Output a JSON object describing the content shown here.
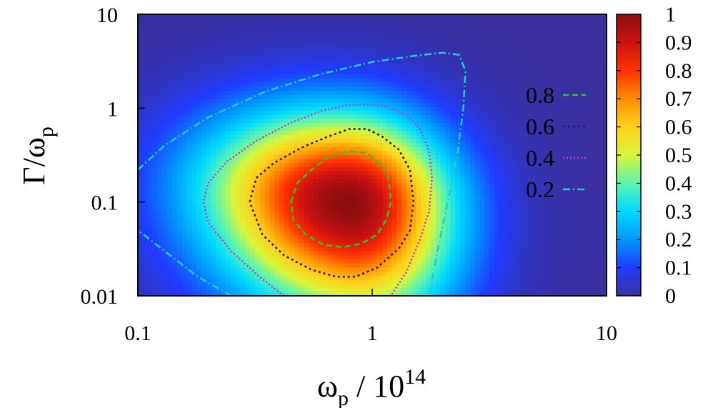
{
  "chart_data": {
    "type": "heatmap",
    "title": "",
    "xlabel": {
      "base": "ω",
      "sub": "p",
      "mid": " / 10",
      "sup": "14"
    },
    "ylabel": {
      "base": "Γ/ω",
      "sub": "p"
    },
    "x_scale": "log",
    "y_scale": "log",
    "xlim": [
      0.1,
      10
    ],
    "ylim": [
      0.01,
      10
    ],
    "x_ticks": [
      "0.1",
      "1",
      "10"
    ],
    "y_ticks": [
      "0.01",
      "0.1",
      "1",
      "10"
    ],
    "zlim": [
      0,
      1
    ],
    "colorbar_ticks": [
      "0",
      "0.1",
      "0.2",
      "0.3",
      "0.4",
      "0.5",
      "0.6",
      "0.7",
      "0.8",
      "0.9",
      "1"
    ],
    "colormap": [
      "#3b2f9e",
      "#1f3cff",
      "#0099ff",
      "#00d9ff",
      "#5cf5b0",
      "#d9f53a",
      "#ffd11a",
      "#ff8c00",
      "#ff3300",
      "#cc1111",
      "#8b0d0d"
    ],
    "peak": {
      "x": 0.8,
      "y": 0.1,
      "z": 1.0
    },
    "contours": [
      {
        "level": "0.8",
        "color": "#22cc22",
        "dash": "8 5",
        "x": [
          0.45,
          0.48,
          0.55,
          0.65,
          0.8,
          0.95,
          1.1,
          1.18,
          1.2,
          1.15,
          1.05,
          0.9,
          0.75,
          0.62,
          0.52,
          0.46,
          0.45
        ],
        "y": [
          0.1,
          0.16,
          0.22,
          0.3,
          0.35,
          0.33,
          0.25,
          0.17,
          0.1,
          0.065,
          0.045,
          0.036,
          0.033,
          0.035,
          0.045,
          0.065,
          0.1
        ]
      },
      {
        "level": "0.6",
        "color": "#1a1a7a",
        "dash": "3 4",
        "x": [
          0.3,
          0.32,
          0.38,
          0.5,
          0.65,
          0.8,
          0.95,
          1.1,
          1.3,
          1.45,
          1.5,
          1.45,
          1.3,
          1.05,
          0.85,
          0.7,
          0.55,
          0.42,
          0.34,
          0.3
        ],
        "y": [
          0.1,
          0.18,
          0.26,
          0.38,
          0.5,
          0.6,
          0.6,
          0.5,
          0.36,
          0.22,
          0.1,
          0.05,
          0.032,
          0.02,
          0.016,
          0.016,
          0.019,
          0.027,
          0.045,
          0.1
        ]
      },
      {
        "level": "0.4",
        "color": "#cc33cc",
        "dash": "2 3",
        "x": [
          0.42,
          0.33,
          0.25,
          0.2,
          0.19,
          0.2,
          0.24,
          0.32,
          0.45,
          0.62,
          0.8,
          0.95,
          1.15,
          1.4,
          1.6,
          1.75,
          1.8,
          1.75,
          1.6,
          1.4,
          1.2
        ],
        "y": [
          0.01,
          0.016,
          0.03,
          0.06,
          0.1,
          0.16,
          0.27,
          0.45,
          0.7,
          0.95,
          1.08,
          1.1,
          1.05,
          0.85,
          0.6,
          0.35,
          0.18,
          0.08,
          0.04,
          0.018,
          0.01
        ]
      },
      {
        "level": "0.2",
        "color": "#22cccc",
        "dash": "10 4 2 4",
        "x": [
          0.25,
          0.18,
          0.13,
          0.1
        ],
        "y": [
          0.01,
          0.016,
          0.03,
          0.05
        ],
        "x2": [
          0.1,
          0.13,
          0.2,
          0.35,
          0.6,
          1.0,
          1.5,
          2.0,
          2.35,
          2.5,
          2.45,
          2.3,
          2.1,
          1.9,
          1.75
        ],
        "y2": [
          0.22,
          0.4,
          0.8,
          1.5,
          2.3,
          3.1,
          3.6,
          3.9,
          3.7,
          2.5,
          1.0,
          0.3,
          0.1,
          0.03,
          0.01
        ]
      }
    ],
    "legend_position": "right"
  }
}
